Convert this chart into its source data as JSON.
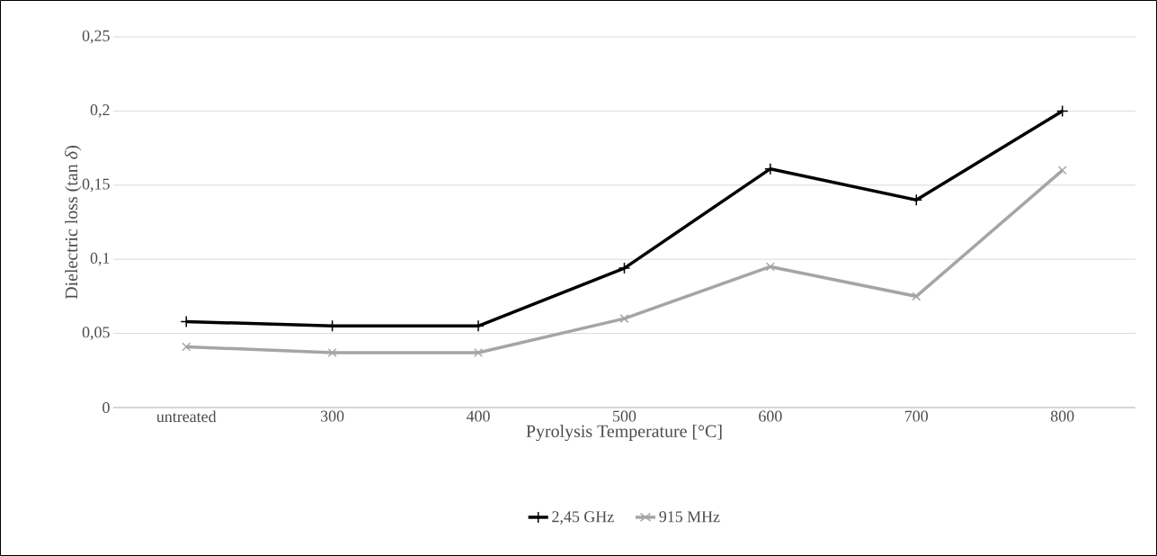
{
  "chart_data": {
    "type": "line",
    "xlabel": "Pyrolysis Temperature [°C]",
    "ylabel": "Dielectric loss (tan *δ*)",
    "categories": [
      "untreated",
      "300",
      "400",
      "500",
      "600",
      "700",
      "800"
    ],
    "series": [
      {
        "name": "2,45 GHz",
        "color": "#000000",
        "marker": "plus",
        "values": [
          0.058,
          0.055,
          0.055,
          0.094,
          0.161,
          0.14,
          0.2
        ]
      },
      {
        "name": "915 MHz",
        "color": "#a5a5a5",
        "marker": "cross",
        "values": [
          0.041,
          0.037,
          0.037,
          0.06,
          0.095,
          0.075,
          0.16
        ]
      }
    ],
    "ylim": [
      0,
      0.25
    ],
    "yticks": [
      0,
      {
        "value": 0.05,
        "label": "0,05"
      },
      {
        "value": 0.1,
        "label": "0,1"
      },
      {
        "value": 0.15,
        "label": "0,15"
      },
      {
        "value": 0.2,
        "label": "0,2"
      },
      {
        "value": 0.25,
        "label": "0,25"
      }
    ],
    "grid": "y",
    "legend": "bottom",
    "line_style": "solid"
  }
}
